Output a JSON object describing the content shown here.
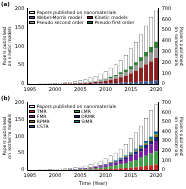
{
  "chart_data": [
    {
      "type": "bar",
      "title": "(a)",
      "ylabel": "Papers published on kinetic models",
      "y2label": "Papers published on nanomaterials",
      "categories": [
        1995,
        null,
        null,
        null,
        null,
        2000,
        null,
        null,
        null,
        null,
        2005,
        null,
        null,
        null,
        null,
        2010,
        null,
        null,
        null,
        null,
        2015,
        null,
        null,
        null,
        null,
        2020
      ],
      "series": [
        {
          "name": "Weber-Morris model",
          "color": "#3b5998",
          "values": [
            0,
            0,
            0,
            0,
            0,
            0,
            0,
            0,
            0,
            0,
            0,
            0,
            0,
            1,
            1,
            1,
            2,
            2,
            3,
            3,
            4,
            5,
            6,
            7,
            8,
            9
          ]
        },
        {
          "name": "Kinetic models",
          "color": "#8b1e1e",
          "values": [
            0,
            0,
            0,
            0,
            0,
            0,
            0,
            1,
            1,
            1,
            2,
            2,
            3,
            4,
            5,
            7,
            9,
            12,
            15,
            19,
            24,
            30,
            37,
            45,
            52,
            60
          ]
        },
        {
          "name": "Pseudo second order",
          "color": "#9e9e9e",
          "values": [
            0,
            0,
            0,
            0,
            0,
            0,
            0,
            0,
            0,
            1,
            1,
            1,
            2,
            2,
            3,
            4,
            5,
            6,
            8,
            10,
            12,
            14,
            17,
            20,
            23,
            26
          ]
        },
        {
          "name": "Pseudo first order",
          "color": "#2e7d32",
          "values": [
            0,
            0,
            0,
            0,
            0,
            0,
            0,
            0,
            0,
            0,
            0,
            1,
            1,
            1,
            2,
            2,
            3,
            4,
            5,
            6,
            7,
            9,
            11,
            13,
            15,
            17
          ]
        },
        {
          "name": "Papers published on nanomaterials",
          "color": "#ffffff",
          "axis": "y2",
          "values": [
            2,
            3,
            4,
            5,
            7,
            9,
            12,
            15,
            20,
            28,
            35,
            45,
            60,
            75,
            95,
            120,
            150,
            180,
            220,
            270,
            330,
            390,
            460,
            540,
            620,
            680
          ]
        }
      ],
      "stacked": true,
      "grid": false,
      "legend": "upper left",
      "ylim": [
        0,
        200
      ],
      "yticks": [
        0,
        50,
        100,
        150,
        200
      ],
      "y2lim": [
        0,
        700
      ],
      "y2ticks": [
        0,
        100,
        200,
        300,
        400,
        500,
        600,
        700
      ]
    },
    {
      "type": "bar",
      "title": "(b)",
      "xlabel": "Time (Year)",
      "ylabel": "Papers published on isotherm models",
      "y2label": "Papers published on nanomaterials",
      "categories": [
        1995,
        null,
        null,
        null,
        null,
        2000,
        null,
        null,
        null,
        null,
        2005,
        null,
        null,
        null,
        null,
        2010,
        null,
        null,
        null,
        null,
        2015,
        null,
        null,
        null,
        null,
        2020
      ],
      "series": [
        {
          "name": "TMR",
          "color": "#c62828",
          "values": [
            0,
            0,
            0,
            0,
            0,
            0,
            0,
            0,
            0,
            0,
            1,
            1,
            1,
            2,
            2,
            3,
            3,
            4,
            5,
            6,
            7,
            8,
            10,
            12,
            14,
            16
          ]
        },
        {
          "name": "LMR",
          "color": "#43a047",
          "values": [
            0,
            0,
            0,
            0,
            0,
            0,
            0,
            1,
            1,
            1,
            2,
            2,
            3,
            4,
            5,
            6,
            8,
            10,
            12,
            15,
            18,
            22,
            26,
            30,
            35,
            40
          ]
        },
        {
          "name": "FMR",
          "color": "#7b1fa2",
          "values": [
            0,
            0,
            0,
            0,
            0,
            0,
            0,
            0,
            1,
            1,
            1,
            2,
            2,
            3,
            4,
            5,
            6,
            8,
            10,
            12,
            14,
            17,
            20,
            23,
            27,
            30
          ]
        },
        {
          "name": "DRMR",
          "color": "#1a237e",
          "values": [
            0,
            0,
            0,
            0,
            0,
            0,
            0,
            0,
            0,
            0,
            1,
            1,
            1,
            1,
            2,
            2,
            3,
            3,
            4,
            5,
            6,
            7,
            8,
            9,
            10,
            12
          ]
        },
        {
          "name": "RPMR",
          "color": "#827717",
          "values": [
            0,
            0,
            0,
            0,
            0,
            0,
            0,
            0,
            0,
            0,
            0,
            0,
            1,
            1,
            1,
            1,
            2,
            2,
            2,
            3,
            3,
            4,
            4,
            5,
            6,
            7
          ]
        },
        {
          "name": "SIMR",
          "color": "#00838f",
          "values": [
            0,
            0,
            0,
            0,
            0,
            0,
            0,
            0,
            0,
            0,
            0,
            0,
            0,
            0,
            1,
            1,
            1,
            1,
            2,
            2,
            2,
            3,
            3,
            4,
            4,
            5
          ]
        },
        {
          "name": "CSTR",
          "color": "#0d47a1",
          "values": [
            0,
            0,
            0,
            0,
            0,
            0,
            0,
            0,
            0,
            0,
            0,
            0,
            0,
            0,
            0,
            0,
            1,
            1,
            1,
            1,
            2,
            2,
            2,
            3,
            3,
            4
          ]
        },
        {
          "name": "Papers published on nanomaterials",
          "color": "#ffffff",
          "axis": "y2",
          "values": [
            2,
            3,
            4,
            5,
            7,
            9,
            12,
            15,
            20,
            28,
            35,
            45,
            60,
            75,
            95,
            120,
            150,
            180,
            220,
            270,
            330,
            390,
            460,
            540,
            620,
            680
          ]
        }
      ],
      "stacked": true,
      "grid": false,
      "legend": "upper left",
      "ylim": [
        0,
        200
      ],
      "yticks": [
        0,
        50,
        100,
        150,
        200
      ],
      "y2lim": [
        0,
        700
      ],
      "y2ticks": [
        0,
        100,
        200,
        300,
        400,
        500,
        600,
        700
      ]
    }
  ]
}
